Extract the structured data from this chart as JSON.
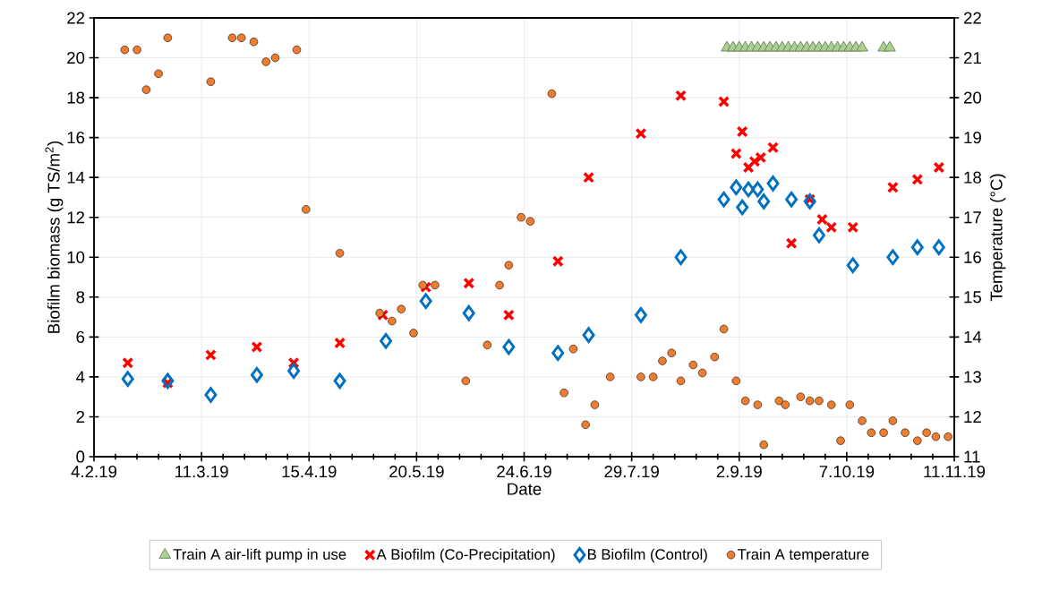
{
  "chart_data": {
    "type": "scatter",
    "xlabel": "Date",
    "ylabel": "Biofilm biomass (g TS/m$^{2}$)",
    "y2label": "Temperature (°C)",
    "xlim": [
      "2019-02-04",
      "2019-11-11"
    ],
    "xticks": [
      {
        "value": "2019-02-04",
        "label": "4.2.19"
      },
      {
        "value": "2019-03-11",
        "label": "11.3.19"
      },
      {
        "value": "2019-04-15",
        "label": "15.4.19"
      },
      {
        "value": "2019-05-20",
        "label": "20.5.19"
      },
      {
        "value": "2019-06-24",
        "label": "24.6.19"
      },
      {
        "value": "2019-07-29",
        "label": "29.7.19"
      },
      {
        "value": "2019-09-02",
        "label": "2.9.19"
      },
      {
        "value": "2019-10-07",
        "label": "7.10.19"
      },
      {
        "value": "2019-11-11",
        "label": "11.11.19"
      }
    ],
    "ylim": [
      0,
      22
    ],
    "yticks": [
      0,
      2,
      4,
      6,
      8,
      10,
      12,
      14,
      16,
      18,
      20,
      22
    ],
    "y2lim": [
      11,
      22
    ],
    "y2ticks": [
      11,
      12,
      13,
      14,
      15,
      16,
      17,
      18,
      19,
      20,
      21,
      22
    ],
    "grid": true,
    "legend": "bottom",
    "series": [
      {
        "name": "Train A air-lift pump in use",
        "color": "#a9d18e",
        "marker": "triangle",
        "x": [
          "2019-08-29",
          "2019-08-31",
          "2019-09-02",
          "2019-09-04",
          "2019-09-06",
          "2019-09-08",
          "2019-09-10",
          "2019-09-12",
          "2019-09-14",
          "2019-09-16",
          "2019-09-18",
          "2019-09-20",
          "2019-09-22",
          "2019-09-24",
          "2019-09-26",
          "2019-09-28",
          "2019-09-30",
          "2019-10-02",
          "2019-10-04",
          "2019-10-06",
          "2019-10-08",
          "2019-10-10",
          "2019-10-12",
          "2019-10-19",
          "2019-10-21"
        ],
        "values": [
          20.5,
          20.5,
          20.5,
          20.5,
          20.5,
          20.5,
          20.5,
          20.5,
          20.5,
          20.5,
          20.5,
          20.5,
          20.5,
          20.5,
          20.5,
          20.5,
          20.5,
          20.5,
          20.5,
          20.5,
          20.5,
          20.5,
          20.5,
          20.5,
          20.5
        ]
      },
      {
        "name": "A Biofilm (Co-Precipitation)",
        "color": "#ff0000",
        "marker": "cross",
        "x": [
          "2019-02-15",
          "2019-02-28",
          "2019-03-14",
          "2019-03-29",
          "2019-04-10",
          "2019-04-25",
          "2019-05-09",
          "2019-05-23",
          "2019-06-06",
          "2019-06-19",
          "2019-07-05",
          "2019-07-15",
          "2019-08-01",
          "2019-08-14",
          "2019-08-28",
          "2019-09-01",
          "2019-09-03",
          "2019-09-05",
          "2019-09-07",
          "2019-09-09",
          "2019-09-13",
          "2019-09-19",
          "2019-09-25",
          "2019-09-29",
          "2019-10-02",
          "2019-10-09",
          "2019-10-22",
          "2019-10-30",
          "2019-11-06"
        ],
        "values": [
          4.7,
          3.7,
          5.1,
          5.5,
          4.7,
          5.7,
          7.1,
          8.5,
          8.7,
          7.1,
          9.8,
          14.0,
          16.2,
          18.1,
          17.8,
          15.2,
          16.3,
          14.5,
          14.8,
          15.0,
          15.5,
          10.7,
          12.9,
          11.9,
          11.5,
          11.5,
          13.5,
          13.9,
          14.5
        ]
      },
      {
        "name": "B Biofilm (Control)",
        "color": "#0070c0",
        "marker": "diamond",
        "x": [
          "2019-02-15",
          "2019-02-28",
          "2019-03-14",
          "2019-03-29",
          "2019-04-10",
          "2019-04-25",
          "2019-05-10",
          "2019-05-23",
          "2019-06-06",
          "2019-06-19",
          "2019-07-05",
          "2019-07-15",
          "2019-08-01",
          "2019-08-14",
          "2019-08-28",
          "2019-09-01",
          "2019-09-03",
          "2019-09-05",
          "2019-09-08",
          "2019-09-10",
          "2019-09-13",
          "2019-09-19",
          "2019-09-25",
          "2019-09-28",
          "2019-10-09",
          "2019-10-22",
          "2019-10-30",
          "2019-11-06"
        ],
        "values": [
          3.9,
          3.8,
          3.1,
          4.1,
          4.3,
          3.8,
          5.8,
          7.8,
          7.2,
          5.5,
          5.2,
          6.1,
          7.1,
          10.0,
          12.9,
          13.5,
          12.5,
          13.4,
          13.4,
          12.8,
          13.7,
          12.9,
          12.8,
          11.1,
          9.6,
          10.0,
          10.5,
          10.5
        ]
      },
      {
        "name": "Train A temperature",
        "color": "#ed7d31",
        "marker": "circle",
        "axis": "y2",
        "x": [
          "2019-02-14",
          "2019-02-18",
          "2019-02-21",
          "2019-02-25",
          "2019-02-28",
          "2019-03-14",
          "2019-03-21",
          "2019-03-24",
          "2019-03-28",
          "2019-04-01",
          "2019-04-04",
          "2019-04-11",
          "2019-04-14",
          "2019-04-25",
          "2019-05-08",
          "2019-05-12",
          "2019-05-15",
          "2019-05-19",
          "2019-05-22",
          "2019-05-26",
          "2019-06-05",
          "2019-06-12",
          "2019-06-16",
          "2019-06-19",
          "2019-06-23",
          "2019-06-26",
          "2019-07-03",
          "2019-07-07",
          "2019-07-10",
          "2019-07-14",
          "2019-07-17",
          "2019-07-22",
          "2019-08-01",
          "2019-08-05",
          "2019-08-08",
          "2019-08-11",
          "2019-08-14",
          "2019-08-18",
          "2019-08-21",
          "2019-08-25",
          "2019-08-28",
          "2019-09-01",
          "2019-09-04",
          "2019-09-08",
          "2019-09-10",
          "2019-09-15",
          "2019-09-17",
          "2019-09-22",
          "2019-09-25",
          "2019-09-28",
          "2019-10-02",
          "2019-10-05",
          "2019-10-08",
          "2019-10-12",
          "2019-10-15",
          "2019-10-19",
          "2019-10-22",
          "2019-10-26",
          "2019-10-30",
          "2019-11-02",
          "2019-11-05",
          "2019-11-09"
        ],
        "values": [
          21.2,
          21.2,
          20.2,
          20.6,
          21.5,
          20.4,
          21.5,
          21.5,
          21.4,
          20.9,
          21.0,
          21.2,
          17.2,
          16.1,
          14.6,
          14.4,
          14.7,
          14.1,
          15.3,
          15.3,
          12.9,
          13.8,
          15.3,
          15.8,
          17.0,
          16.9,
          20.1,
          12.6,
          13.7,
          11.8,
          12.3,
          13.0,
          13.0,
          13.0,
          13.4,
          13.6,
          12.9,
          13.3,
          13.1,
          13.5,
          14.2,
          12.9,
          12.4,
          12.3,
          11.3,
          12.4,
          12.3,
          12.5,
          12.4,
          12.4,
          12.3,
          11.4,
          12.3,
          11.9,
          11.6,
          11.6,
          11.9,
          11.6,
          11.4,
          11.6,
          11.5,
          11.5
        ]
      }
    ]
  }
}
